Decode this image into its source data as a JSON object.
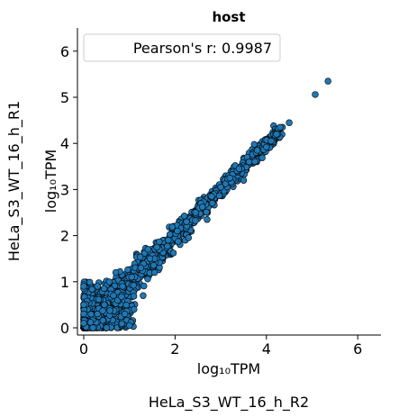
{
  "chart_data": {
    "type": "scatter",
    "title": "host",
    "xlabel": "log₁₀TPM",
    "ylabel": "log₁₀TPM",
    "x_sample_label": "HeLa_S3_WT_16_h_R2",
    "y_sample_label": "HeLa_S3_WT_16_h_R1",
    "legend": "Pearson's r: 0.9987",
    "legend_position": "top-left",
    "xlim": [
      -0.1,
      6.5
    ],
    "ylim": [
      -0.1,
      6.5
    ],
    "xticks": [
      0,
      2,
      4,
      6
    ],
    "yticks": [
      0,
      1,
      2,
      3,
      4,
      5,
      6
    ],
    "grid": false,
    "point_color": "#1f77b4",
    "point_edge_color": "#000000",
    "series": [
      {
        "points": [
          [
            5.35,
            5.35
          ],
          [
            5.07,
            5.06
          ],
          [
            4.5,
            4.45
          ],
          [
            4.3,
            4.35
          ],
          [
            4.22,
            4.2
          ],
          [
            4.1,
            4.05
          ],
          [
            4.0,
            3.92
          ],
          [
            3.8,
            3.85
          ],
          [
            3.62,
            3.6
          ],
          [
            3.4,
            3.45
          ],
          [
            3.2,
            3.25
          ],
          [
            3.0,
            3.05
          ],
          [
            2.8,
            2.85
          ],
          [
            2.6,
            2.62
          ],
          [
            2.45,
            2.5
          ],
          [
            2.25,
            2.3
          ],
          [
            2.05,
            2.1
          ],
          [
            1.85,
            1.9
          ],
          [
            1.65,
            1.7
          ],
          [
            1.45,
            1.5
          ],
          [
            1.25,
            1.3
          ],
          [
            1.05,
            1.1
          ],
          [
            0.85,
            0.9
          ],
          [
            0.65,
            0.7
          ],
          [
            0.45,
            0.5
          ],
          [
            0.3,
            0.3
          ],
          [
            0.15,
            0.12
          ],
          [
            0.05,
            0.02
          ],
          [
            0.0,
            0.5
          ],
          [
            0.0,
            0.3
          ],
          [
            0.0,
            0.1
          ],
          [
            0.0,
            0.85
          ],
          [
            0.5,
            0.0
          ],
          [
            1.0,
            0.05
          ],
          [
            0.9,
            0.3
          ],
          [
            0.3,
            0.9
          ],
          [
            1.3,
            0.7
          ],
          [
            0.7,
            1.2
          ],
          [
            1.55,
            1.2
          ],
          [
            1.6,
            1.75
          ],
          [
            2.7,
            2.35
          ],
          [
            3.5,
            3.2
          ],
          [
            0.0,
            0.9
          ],
          [
            0.2,
            0.0
          ],
          [
            1.1,
            0.4
          ]
        ]
      }
    ]
  }
}
